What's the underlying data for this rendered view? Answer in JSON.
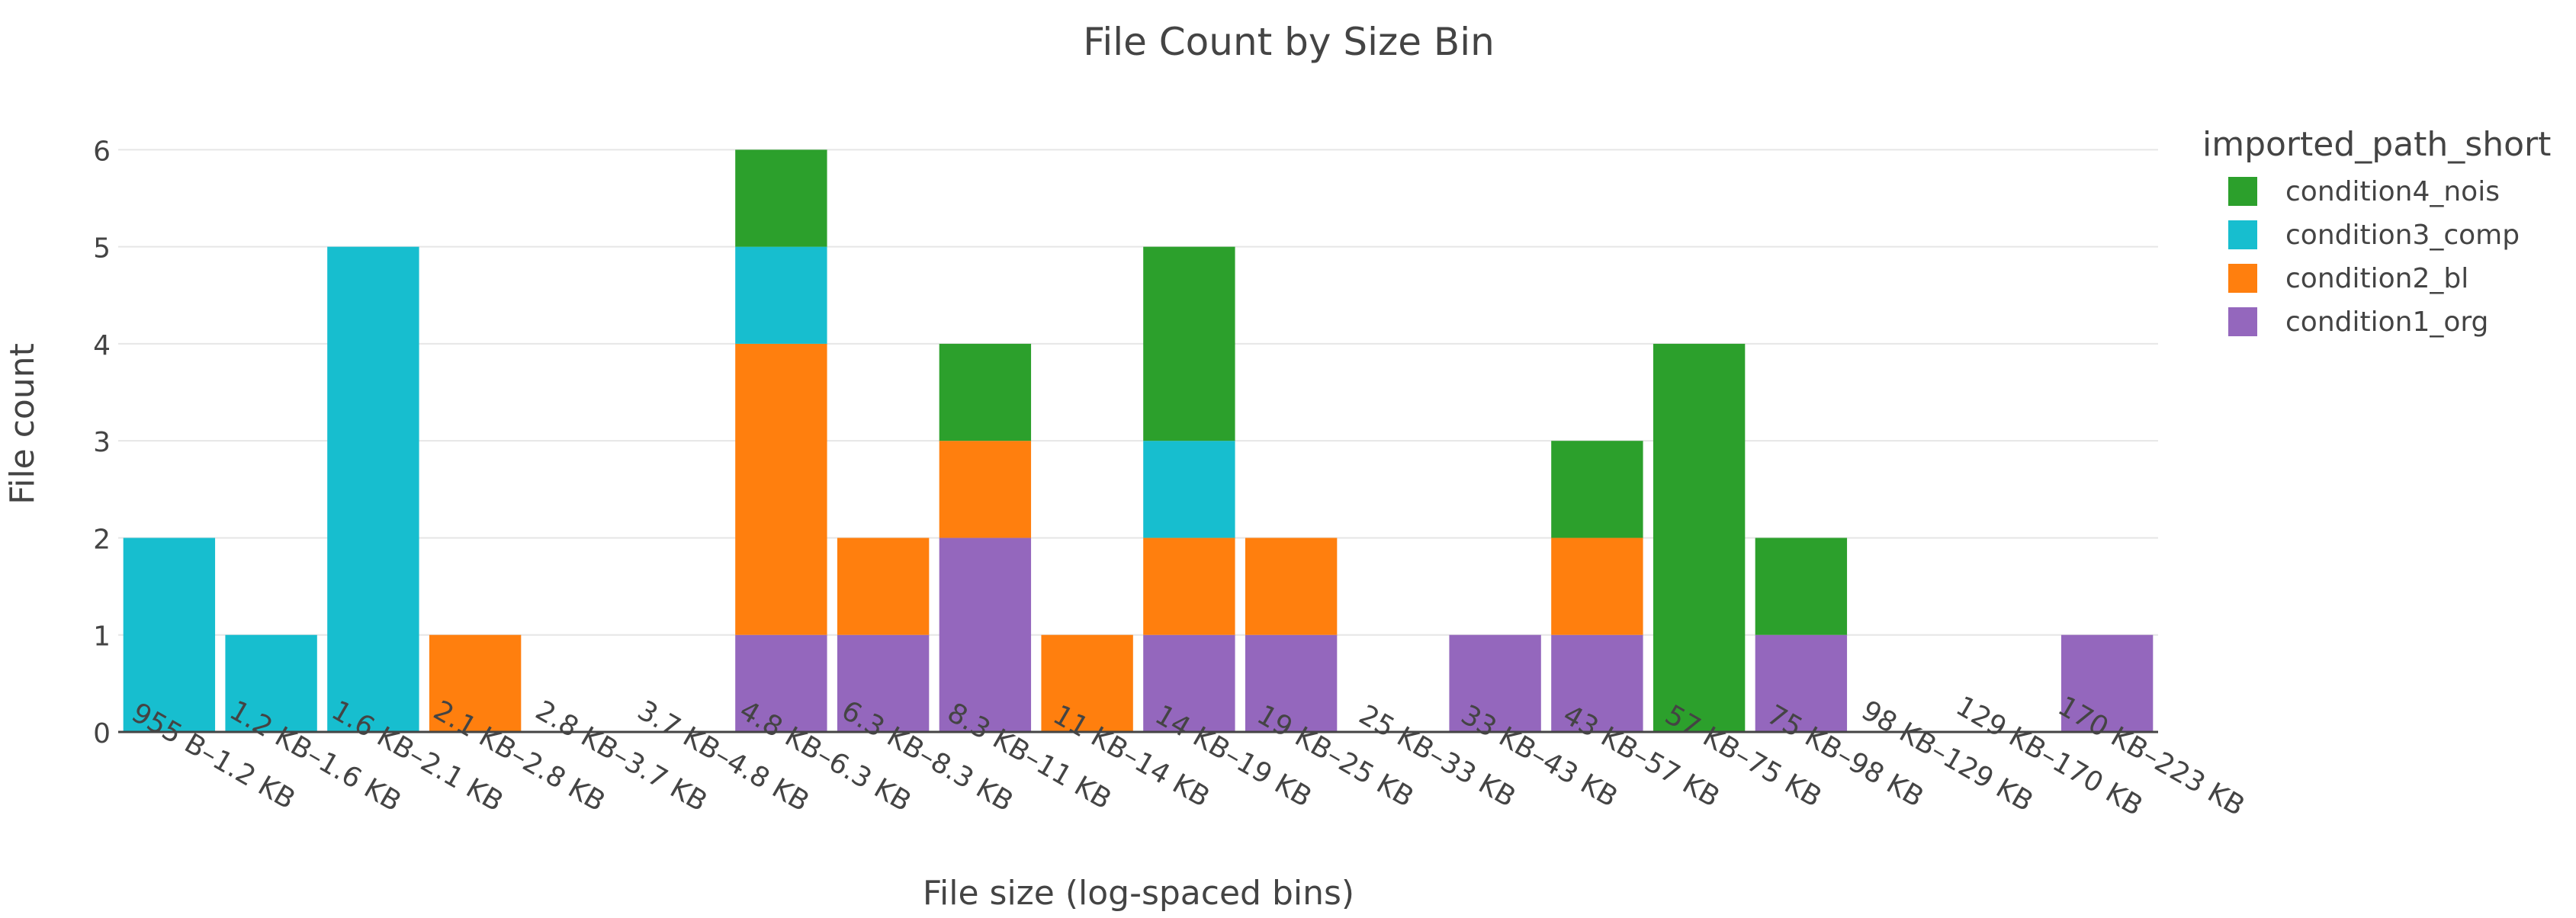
{
  "chart_data": {
    "type": "bar",
    "barmode": "stack",
    "title": "File Count by Size Bin",
    "xlabel": "File size (log-spaced bins)",
    "ylabel": "File count",
    "ylim": [
      0,
      6.05
    ],
    "yticks": [
      0,
      1,
      2,
      3,
      4,
      5,
      6
    ],
    "grid": true,
    "legend_title": "imported_path_short",
    "legend_position": "top-right",
    "categories": [
      "955 B–1.2 KB",
      "1.2 KB–1.6 KB",
      "1.6 KB–2.1 KB",
      "2.1 KB–2.8 KB",
      "2.8 KB–3.7 KB",
      "3.7 KB–4.8 KB",
      "4.8 KB–6.3 KB",
      "6.3 KB–8.3 KB",
      "8.3 KB–11 KB",
      "11 KB–14 KB",
      "14 KB–19 KB",
      "19 KB–25 KB",
      "25 KB–33 KB",
      "33 KB–43 KB",
      "43 KB–57 KB",
      "57 KB–75 KB",
      "75 KB–98 KB",
      "98 KB–129 KB",
      "129 KB–170 KB",
      "170 KB–223 KB"
    ],
    "series": [
      {
        "name": "condition1_org",
        "color": "#9467bd",
        "values": [
          0,
          0,
          0,
          0,
          0,
          0,
          1,
          1,
          2,
          0,
          1,
          1,
          0,
          1,
          1,
          0,
          1,
          0,
          0,
          1
        ]
      },
      {
        "name": "condition2_bl",
        "color": "#ff7f0e",
        "values": [
          0,
          0,
          0,
          1,
          0,
          0,
          3,
          1,
          1,
          1,
          1,
          1,
          0,
          0,
          1,
          0,
          0,
          0,
          0,
          0
        ]
      },
      {
        "name": "condition3_comp",
        "color": "#17becf",
        "values": [
          2,
          1,
          5,
          0,
          0,
          0,
          1,
          0,
          0,
          0,
          1,
          0,
          0,
          0,
          0,
          0,
          0,
          0,
          0,
          0
        ]
      },
      {
        "name": "condition4_nois",
        "color": "#2ca02c",
        "values": [
          0,
          0,
          0,
          0,
          0,
          0,
          1,
          0,
          1,
          0,
          2,
          0,
          0,
          0,
          1,
          4,
          1,
          0,
          0,
          0
        ]
      }
    ],
    "legend_order": [
      "condition4_nois",
      "condition3_comp",
      "condition2_bl",
      "condition1_org"
    ]
  }
}
